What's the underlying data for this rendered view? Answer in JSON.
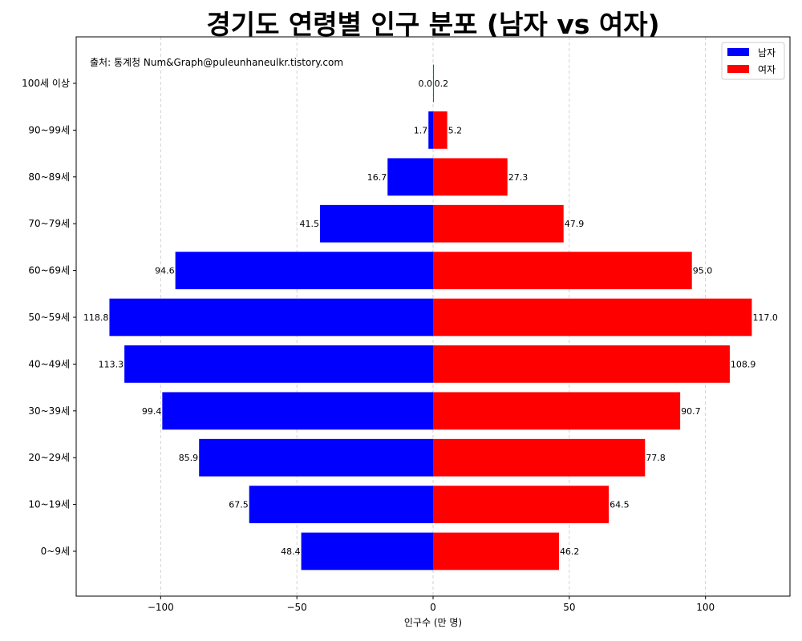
{
  "chart_data": {
    "type": "bar",
    "orientation": "horizontal",
    "title": "경기도 연령별 인구 분포 (남자 vs 여자)",
    "xlabel": "인구수 (만 명)",
    "ylabel": "",
    "source_note": "출처: 통계청 Num&Graph@puleunhaneulkr.tistory.com",
    "categories": [
      "0~9세",
      "10~19세",
      "20~29세",
      "30~39세",
      "40~49세",
      "50~59세",
      "60~69세",
      "70~79세",
      "80~89세",
      "90~99세",
      "100세 이상"
    ],
    "series": [
      {
        "name": "남자",
        "color": "#0000ff",
        "values": [
          48.4,
          67.5,
          85.9,
          99.4,
          113.3,
          118.8,
          94.6,
          41.5,
          16.7,
          1.7,
          0.0
        ]
      },
      {
        "name": "여자",
        "color": "#ff0000",
        "values": [
          46.2,
          64.5,
          77.8,
          90.7,
          108.9,
          117.0,
          95.0,
          47.9,
          27.3,
          5.2,
          0.2
        ]
      }
    ],
    "xlim": [
      -131,
      131
    ],
    "x_ticks": [
      {
        "value": -100,
        "label": "−100"
      },
      {
        "value": -50,
        "label": "−50"
      },
      {
        "value": 0,
        "label": "0"
      },
      {
        "value": 50,
        "label": "50"
      },
      {
        "value": 100,
        "label": "100"
      }
    ],
    "grid": "x-dashed",
    "legend_position": "top-right"
  }
}
